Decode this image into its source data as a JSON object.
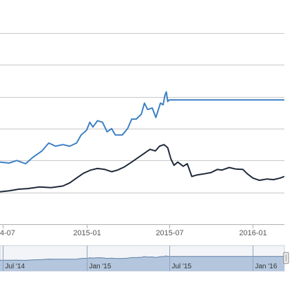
{
  "chart_data": {
    "type": "line",
    "x_tick_labels": [
      "4-07",
      "2015-01",
      "2015-07",
      "2016-01"
    ],
    "x_tick_dates": [
      "2014-07-01",
      "2015-01-01",
      "2015-07-01",
      "2016-01-01"
    ],
    "xlim": [
      "2014-06-25",
      "2016-03-10"
    ],
    "ylim": [
      0,
      6
    ],
    "y_gridlines": [
      1,
      2,
      3,
      4,
      5,
      6
    ],
    "y_tick_labels_visible": false,
    "grid": true,
    "legend": "none",
    "series": [
      {
        "color": "#3a7fc4",
        "points": [
          [
            "2014-06-25",
            1.95
          ],
          [
            "2014-07-15",
            1.92
          ],
          [
            "2014-08-01",
            2.0
          ],
          [
            "2014-08-20",
            1.9
          ],
          [
            "2014-09-05",
            2.1
          ],
          [
            "2014-09-25",
            2.3
          ],
          [
            "2014-10-10",
            2.55
          ],
          [
            "2014-10-25",
            2.45
          ],
          [
            "2014-11-10",
            2.5
          ],
          [
            "2014-11-25",
            2.45
          ],
          [
            "2014-12-10",
            2.55
          ],
          [
            "2014-12-20",
            2.8
          ],
          [
            "2015-01-01",
            2.95
          ],
          [
            "2015-01-08",
            3.2
          ],
          [
            "2015-01-15",
            3.05
          ],
          [
            "2015-01-25",
            3.25
          ],
          [
            "2015-02-05",
            3.2
          ],
          [
            "2015-02-15",
            2.9
          ],
          [
            "2015-02-25",
            3.0
          ],
          [
            "2015-03-05",
            2.8
          ],
          [
            "2015-03-20",
            2.8
          ],
          [
            "2015-04-01",
            3.0
          ],
          [
            "2015-04-10",
            3.3
          ],
          [
            "2015-04-20",
            3.3
          ],
          [
            "2015-05-01",
            3.45
          ],
          [
            "2015-05-08",
            3.8
          ],
          [
            "2015-05-15",
            3.6
          ],
          [
            "2015-05-25",
            3.65
          ],
          [
            "2015-06-02",
            3.35
          ],
          [
            "2015-06-12",
            3.8
          ],
          [
            "2015-06-18",
            3.75
          ],
          [
            "2015-06-22",
            4.05
          ],
          [
            "2015-06-25",
            4.15
          ],
          [
            "2015-06-28",
            3.85
          ],
          [
            "2015-07-01",
            3.9
          ],
          [
            "2015-09-01",
            3.9
          ],
          [
            "2015-12-01",
            3.9
          ],
          [
            "2016-03-10",
            3.9
          ]
        ]
      },
      {
        "color": "#1d2838",
        "points": [
          [
            "2014-06-25",
            1.02
          ],
          [
            "2014-07-15",
            1.05
          ],
          [
            "2014-08-05",
            1.1
          ],
          [
            "2014-08-25",
            1.12
          ],
          [
            "2014-09-20",
            1.17
          ],
          [
            "2014-10-15",
            1.15
          ],
          [
            "2014-11-10",
            1.2
          ],
          [
            "2014-11-25",
            1.3
          ],
          [
            "2014-12-10",
            1.45
          ],
          [
            "2014-12-25",
            1.6
          ],
          [
            "2015-01-10",
            1.7
          ],
          [
            "2015-01-25",
            1.75
          ],
          [
            "2015-02-10",
            1.72
          ],
          [
            "2015-02-25",
            1.65
          ],
          [
            "2015-03-10",
            1.7
          ],
          [
            "2015-03-25",
            1.8
          ],
          [
            "2015-04-10",
            1.95
          ],
          [
            "2015-04-25",
            2.1
          ],
          [
            "2015-05-10",
            2.25
          ],
          [
            "2015-05-20",
            2.35
          ],
          [
            "2015-06-01",
            2.3
          ],
          [
            "2015-06-10",
            2.45
          ],
          [
            "2015-06-20",
            2.5
          ],
          [
            "2015-06-28",
            2.4
          ],
          [
            "2015-07-05",
            2.05
          ],
          [
            "2015-07-12",
            1.85
          ],
          [
            "2015-07-20",
            1.95
          ],
          [
            "2015-08-01",
            1.82
          ],
          [
            "2015-08-10",
            1.9
          ],
          [
            "2015-08-20",
            1.5
          ],
          [
            "2015-09-01",
            1.55
          ],
          [
            "2015-09-15",
            1.58
          ],
          [
            "2015-10-01",
            1.62
          ],
          [
            "2015-10-15",
            1.72
          ],
          [
            "2015-10-25",
            1.7
          ],
          [
            "2015-11-10",
            1.78
          ],
          [
            "2015-11-25",
            1.73
          ],
          [
            "2015-12-10",
            1.72
          ],
          [
            "2015-12-20",
            1.58
          ],
          [
            "2016-01-01",
            1.45
          ],
          [
            "2016-01-15",
            1.38
          ],
          [
            "2016-02-01",
            1.42
          ],
          [
            "2016-02-15",
            1.4
          ],
          [
            "2016-03-01",
            1.45
          ],
          [
            "2016-03-10",
            1.5
          ]
        ]
      }
    ],
    "navigator": {
      "tick_labels": [
        "Jul '14",
        "Jan '15",
        "Jul '15",
        "Jan '16"
      ],
      "tick_dates": [
        "2014-07-01",
        "2015-01-01",
        "2015-07-01",
        "2016-01-01"
      ],
      "fill_color": "#b3c6dd",
      "line_color": "#5f7fa6"
    }
  }
}
